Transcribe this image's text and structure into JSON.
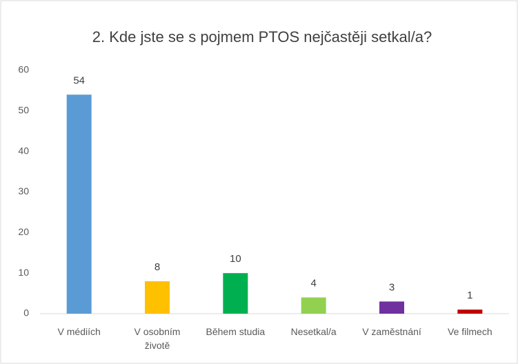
{
  "chart_data": {
    "type": "bar",
    "title": "2. Kde jste se s pojmem PTOS nejčastěji setkal/a?",
    "categories": [
      "V médiích",
      "V osobním životě",
      "Během studia",
      "Nesetkal/a",
      "V zaměstnání",
      "Ve filmech"
    ],
    "values": [
      54,
      8,
      10,
      4,
      3,
      1
    ],
    "colors": [
      "#5b9bd5",
      "#ffc000",
      "#00b050",
      "#92d050",
      "#7030a0",
      "#c00000"
    ],
    "ylim": [
      0,
      60
    ],
    "yticks": [
      0,
      10,
      20,
      30,
      40,
      50,
      60
    ],
    "grid": false,
    "data_labels": true
  }
}
